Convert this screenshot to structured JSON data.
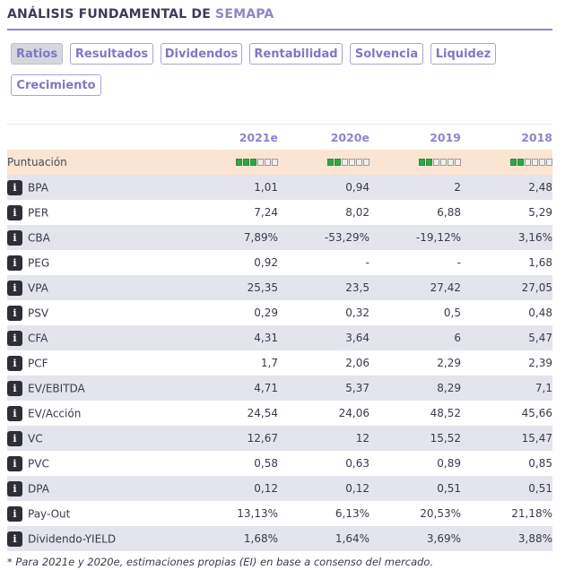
{
  "header": {
    "title_prefix": "ANÁLISIS FUNDAMENTAL DE",
    "title_brand": "SEMAPA"
  },
  "tabs": [
    {
      "label": "Ratios",
      "active": true
    },
    {
      "label": "Resultados",
      "active": false
    },
    {
      "label": "Dividendos",
      "active": false
    },
    {
      "label": "Rentabilidad",
      "active": false
    },
    {
      "label": "Solvencia",
      "active": false
    },
    {
      "label": "Liquidez",
      "active": false
    },
    {
      "label": "Crecimiento",
      "active": false
    }
  ],
  "table": {
    "columns": [
      "2021e",
      "2020e",
      "2019",
      "2018"
    ],
    "score": {
      "label": "Puntuación",
      "filled": [
        3,
        2,
        2,
        2
      ],
      "total": 6
    },
    "rows": [
      {
        "label": "BPA",
        "values": [
          "1,01",
          "0,94",
          "2",
          "2,48"
        ]
      },
      {
        "label": "PER",
        "values": [
          "7,24",
          "8,02",
          "6,88",
          "5,29"
        ]
      },
      {
        "label": "CBA",
        "values": [
          "7,89%",
          "-53,29%",
          "-19,12%",
          "3,16%"
        ]
      },
      {
        "label": "PEG",
        "values": [
          "0,92",
          "-",
          "-",
          "1,68"
        ]
      },
      {
        "label": "VPA",
        "values": [
          "25,35",
          "23,5",
          "27,42",
          "27,05"
        ]
      },
      {
        "label": "PSV",
        "values": [
          "0,29",
          "0,32",
          "0,5",
          "0,48"
        ]
      },
      {
        "label": "CFA",
        "values": [
          "4,31",
          "3,64",
          "6",
          "5,47"
        ]
      },
      {
        "label": "PCF",
        "values": [
          "1,7",
          "2,06",
          "2,29",
          "2,39"
        ]
      },
      {
        "label": "EV/EBITDA",
        "values": [
          "4,71",
          "5,37",
          "8,29",
          "7,1"
        ]
      },
      {
        "label": "EV/Acción",
        "values": [
          "24,54",
          "24,06",
          "48,52",
          "45,66"
        ]
      },
      {
        "label": "VC",
        "values": [
          "12,67",
          "12",
          "15,52",
          "15,47"
        ]
      },
      {
        "label": "PVC",
        "values": [
          "0,58",
          "0,63",
          "0,89",
          "0,85"
        ]
      },
      {
        "label": "DPA",
        "values": [
          "0,12",
          "0,12",
          "0,51",
          "0,51"
        ]
      },
      {
        "label": "Pay-Out",
        "values": [
          "13,13%",
          "6,13%",
          "20,53%",
          "21,18%"
        ]
      },
      {
        "label": "Dividendo-YIELD",
        "values": [
          "1,68%",
          "1,64%",
          "3,69%",
          "3,88%"
        ]
      }
    ]
  },
  "footnote": "* Para 2021e y 2020e, estimaciones propias (EI) en base a consenso del mercado.",
  "colors": {
    "accent": "#8d86c9",
    "score_bg": "#fbe5d2",
    "stripe": "#e4e4ec",
    "score_on": "#2fa64a"
  },
  "icons": {
    "info": "info-icon"
  }
}
